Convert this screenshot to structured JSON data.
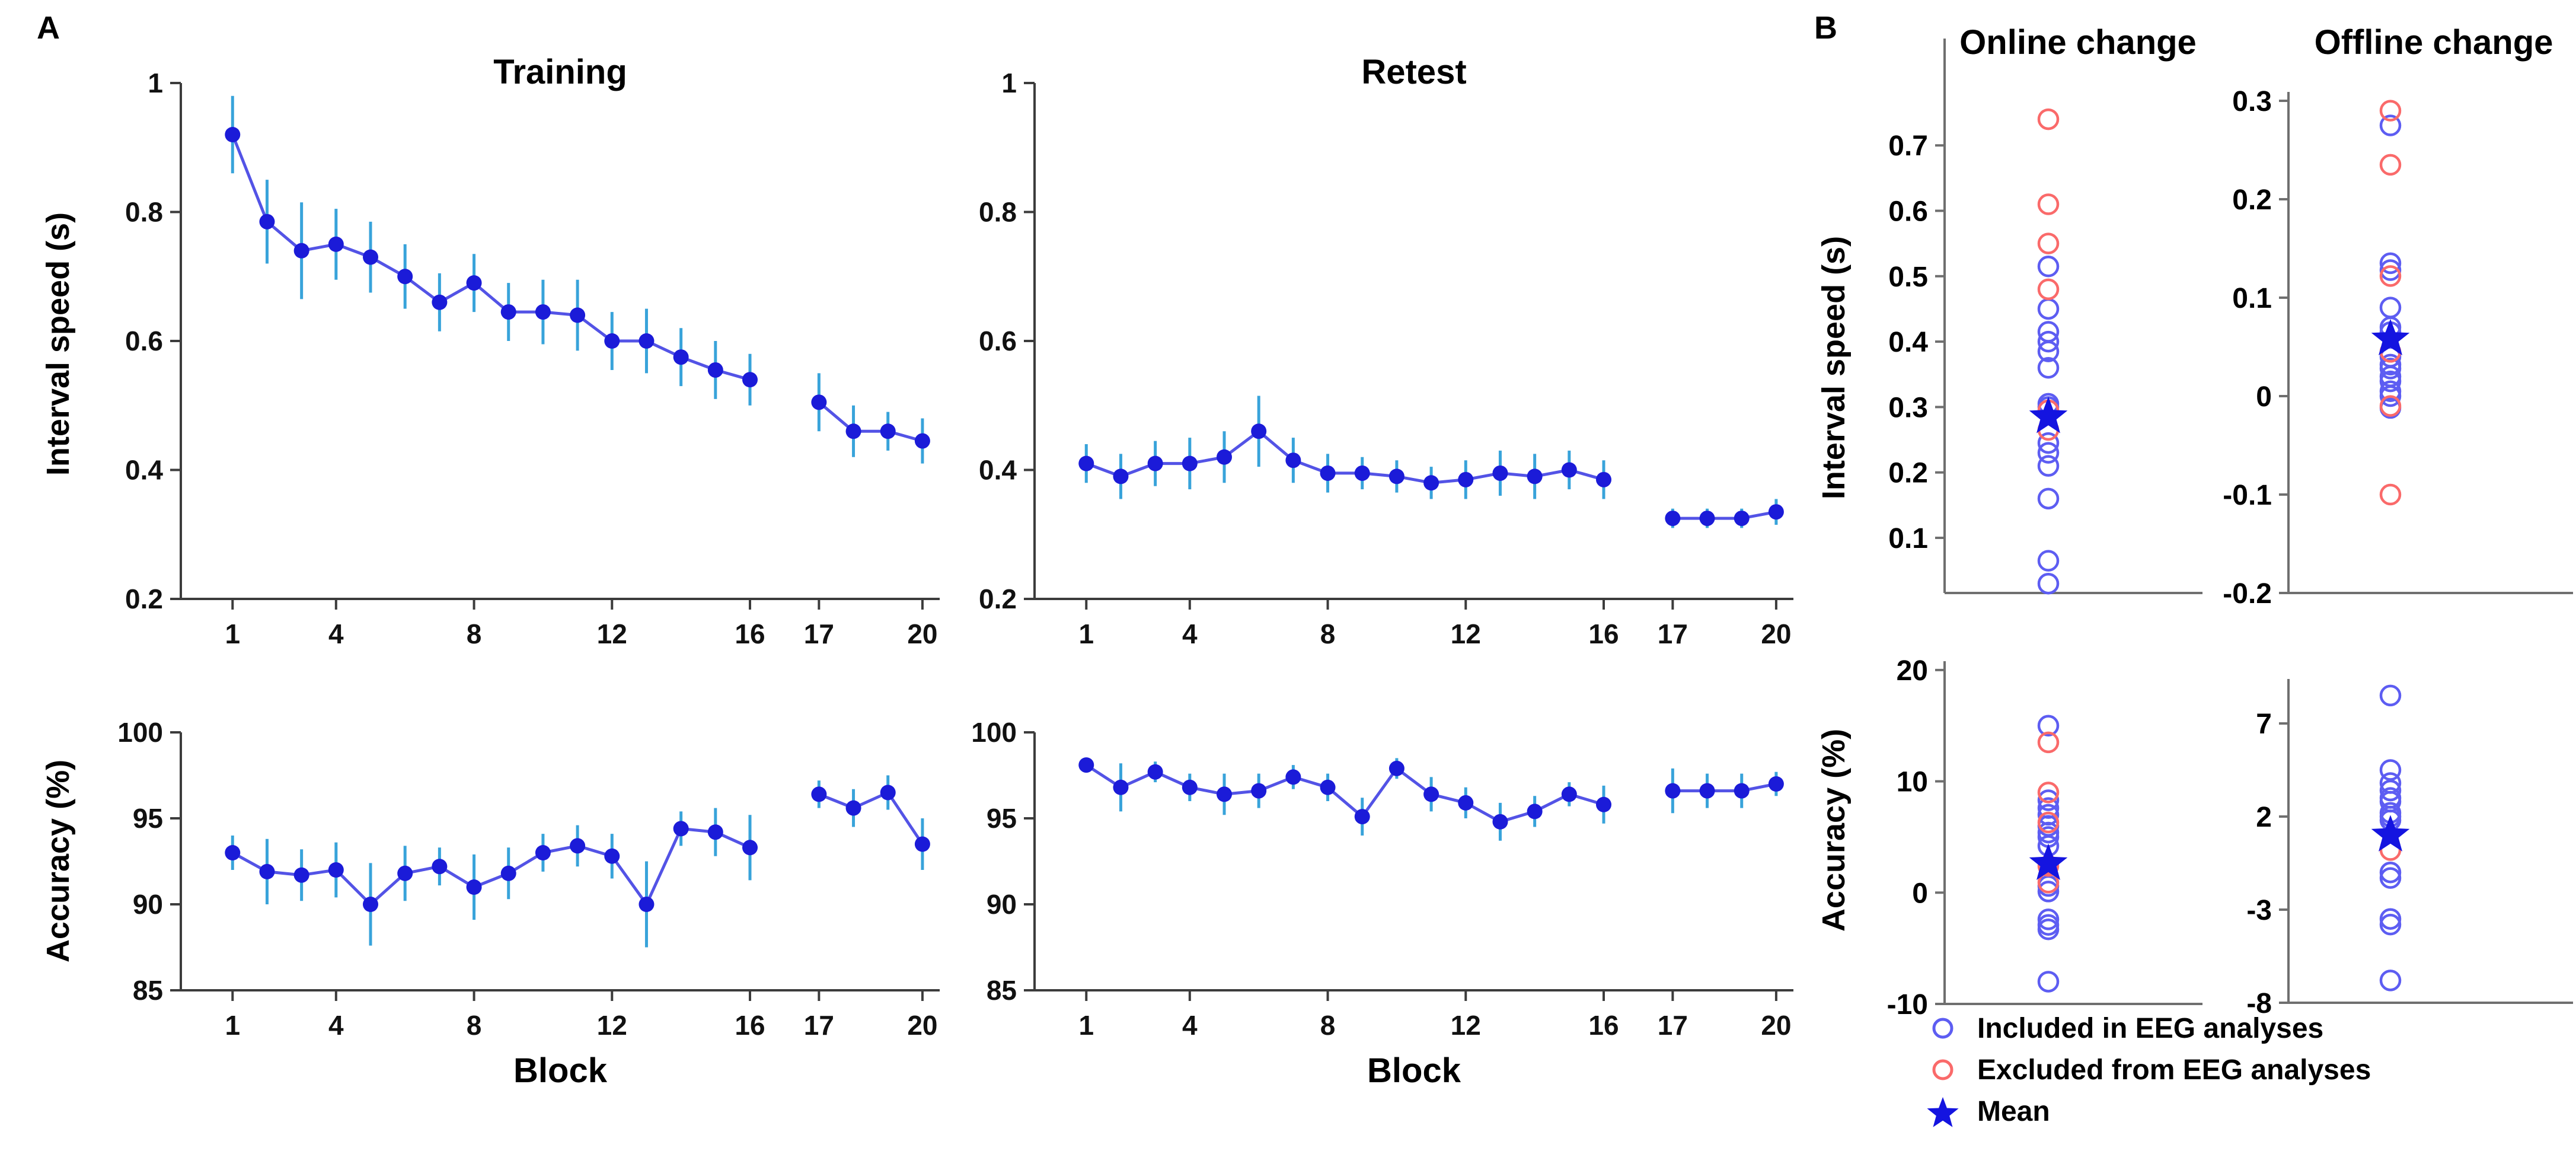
{
  "figure": {
    "panel_a_label": "A",
    "panel_b_label": "B",
    "labels": {
      "training_title": "Training",
      "retest_title": "Retest",
      "online_title": "Online change",
      "offline_title": "Offline change",
      "speed_ylabel": "Interval speed (s)",
      "accuracy_ylabel": "Accuracy (%)",
      "block_xlabel": "Block"
    },
    "colors": {
      "marker_blue": "#1b1bd8",
      "line_blue": "#5353e6",
      "error_bar_blue": "#38a3da",
      "included_blue": "#5d5df2",
      "excluded_red": "#fa6a6a",
      "mean_star_blue": "#1414e0",
      "axis_dark": "#3c3c3c",
      "axis_gray": "#6f6f6f",
      "text_black": "#111111"
    },
    "legend": {
      "items": [
        {
          "icon": "blue-open-circle",
          "label": "Included in EEG analyses"
        },
        {
          "icon": "red-open-circle",
          "label": "Excluded from EEG analyses"
        },
        {
          "icon": "blue-star",
          "label": "Mean"
        }
      ]
    }
  },
  "chart_data": [
    {
      "id": "training-speed",
      "type": "line",
      "title": "Training",
      "ylabel": "Interval speed (s)",
      "xlabel": "",
      "ylim": [
        0.2,
        1
      ],
      "yticks": [
        0.2,
        0.4,
        0.6,
        0.8,
        1
      ],
      "xticks": [
        1,
        4,
        8,
        12,
        16,
        17,
        20
      ],
      "gap_after_block": 16,
      "categories": [
        1,
        2,
        3,
        4,
        5,
        6,
        7,
        8,
        9,
        10,
        11,
        12,
        13,
        14,
        15,
        16,
        17,
        18,
        19,
        20
      ],
      "values": [
        0.92,
        0.785,
        0.74,
        0.75,
        0.73,
        0.7,
        0.66,
        0.69,
        0.645,
        0.645,
        0.64,
        0.6,
        0.6,
        0.575,
        0.555,
        0.54,
        0.505,
        0.46,
        0.46,
        0.445
      ],
      "errors": [
        0.06,
        0.065,
        0.075,
        0.055,
        0.055,
        0.05,
        0.045,
        0.045,
        0.045,
        0.05,
        0.055,
        0.045,
        0.05,
        0.045,
        0.045,
        0.04,
        0.045,
        0.04,
        0.03,
        0.035
      ]
    },
    {
      "id": "retest-speed",
      "type": "line",
      "title": "Retest",
      "ylabel": "",
      "xlabel": "",
      "ylim": [
        0.2,
        1
      ],
      "yticks": [
        0.2,
        0.4,
        0.6,
        0.8,
        1
      ],
      "xticks": [
        1,
        4,
        8,
        12,
        16,
        17,
        20
      ],
      "gap_after_block": 16,
      "categories": [
        1,
        2,
        3,
        4,
        5,
        6,
        7,
        8,
        9,
        10,
        11,
        12,
        13,
        14,
        15,
        16,
        17,
        18,
        19,
        20
      ],
      "values": [
        0.41,
        0.39,
        0.41,
        0.41,
        0.42,
        0.46,
        0.415,
        0.395,
        0.395,
        0.39,
        0.38,
        0.385,
        0.395,
        0.39,
        0.4,
        0.385,
        0.325,
        0.325,
        0.325,
        0.335
      ],
      "errors": [
        0.03,
        0.035,
        0.035,
        0.04,
        0.04,
        0.055,
        0.035,
        0.03,
        0.025,
        0.025,
        0.025,
        0.03,
        0.035,
        0.035,
        0.03,
        0.03,
        0.015,
        0.015,
        0.015,
        0.02
      ]
    },
    {
      "id": "training-accuracy",
      "type": "line",
      "title": "",
      "ylabel": "Accuracy (%)",
      "xlabel": "Block",
      "ylim": [
        85,
        100
      ],
      "yticks": [
        85,
        90,
        95,
        100
      ],
      "xticks": [
        1,
        4,
        8,
        12,
        16,
        17,
        20
      ],
      "gap_after_block": 16,
      "categories": [
        1,
        2,
        3,
        4,
        5,
        6,
        7,
        8,
        9,
        10,
        11,
        12,
        13,
        14,
        15,
        16,
        17,
        18,
        19,
        20
      ],
      "values": [
        93,
        91.9,
        91.7,
        92,
        90,
        91.8,
        92.2,
        91,
        91.8,
        93,
        93.4,
        92.8,
        90,
        94.4,
        94.2,
        93.3,
        96.4,
        95.6,
        96.5,
        93.5
      ],
      "errors": [
        1.0,
        1.9,
        1.5,
        1.6,
        2.4,
        1.6,
        1.1,
        1.9,
        1.5,
        1.1,
        1.2,
        1.3,
        2.5,
        1.0,
        1.4,
        1.9,
        0.8,
        1.1,
        1.0,
        1.5
      ]
    },
    {
      "id": "retest-accuracy",
      "type": "line",
      "title": "",
      "ylabel": "",
      "xlabel": "Block",
      "ylim": [
        85,
        100
      ],
      "yticks": [
        85,
        90,
        95,
        100
      ],
      "xticks": [
        1,
        4,
        8,
        12,
        16,
        17,
        20
      ],
      "gap_after_block": 16,
      "categories": [
        1,
        2,
        3,
        4,
        5,
        6,
        7,
        8,
        9,
        10,
        11,
        12,
        13,
        14,
        15,
        16,
        17,
        18,
        19,
        20
      ],
      "values": [
        98.1,
        96.8,
        97.7,
        96.8,
        96.4,
        96.6,
        97.4,
        96.8,
        95.1,
        97.9,
        96.4,
        95.9,
        94.8,
        95.4,
        96.4,
        95.8,
        96.6,
        96.6,
        96.6,
        97.0
      ],
      "errors": [
        0.4,
        1.4,
        0.6,
        0.8,
        1.2,
        1.0,
        0.7,
        0.8,
        1.1,
        0.6,
        1.0,
        0.9,
        1.1,
        0.9,
        0.7,
        1.1,
        1.3,
        1.0,
        1.0,
        0.7
      ]
    },
    {
      "id": "online-change-speed",
      "type": "scatter",
      "title": "Online change",
      "ylabel": "Interval speed (s)",
      "ylim": [
        0,
        0.8
      ],
      "yticks": [
        0.1,
        0.2,
        0.3,
        0.4,
        0.5,
        0.6,
        0.7
      ],
      "included": [
        0.515,
        0.45,
        0.415,
        0.4,
        0.385,
        0.36,
        0.305,
        0.3,
        0.245,
        0.23,
        0.21,
        0.16,
        0.065,
        0.03
      ],
      "excluded": [
        0.74,
        0.61,
        0.55,
        0.48,
        0.295,
        0.265
      ],
      "mean": 0.285
    },
    {
      "id": "offline-change-speed",
      "type": "scatter",
      "title": "Offline change",
      "ylabel": "Interval speed (s)",
      "ylim": [
        -0.2,
        0.3
      ],
      "yticks": [
        -0.2,
        -0.1,
        0,
        0.1,
        0.2,
        0.3
      ],
      "included": [
        0.275,
        0.135,
        0.128,
        0.09,
        0.07,
        0.065,
        0.04,
        0.032,
        0.028,
        0.02,
        0.015,
        0.005,
        0,
        -0.012
      ],
      "excluded": [
        0.29,
        0.235,
        0.122,
        0.045,
        -0.01,
        -0.1
      ],
      "mean": 0.058
    },
    {
      "id": "online-change-accuracy",
      "type": "scatter",
      "title": "Online change",
      "ylabel": "Accuracy (%)",
      "ylim": [
        -10,
        20
      ],
      "yticks": [
        -10,
        0,
        10,
        20
      ],
      "included": [
        15,
        8.3,
        7.6,
        7.0,
        6.0,
        5.4,
        5.0,
        4.2,
        0.6,
        0.1,
        -2.4,
        -2.9,
        -3.3,
        -8
      ],
      "excluded": [
        13.5,
        9.0,
        6.3,
        2.4,
        0.9
      ],
      "mean": 2.6
    },
    {
      "id": "offline-change-accuracy",
      "type": "scatter",
      "title": "Offline change",
      "ylabel": "Accuracy (%)",
      "ylim": [
        -8,
        9
      ],
      "yticks": [
        -8,
        -3,
        2,
        7
      ],
      "included": [
        8.5,
        4.5,
        3.8,
        3.4,
        3.0,
        2.8,
        2.2,
        2.0,
        1.8,
        -1.0,
        -1.3,
        -3.5,
        -3.8,
        -6.8
      ],
      "excluded": [
        0.2
      ],
      "mean": 1.0
    }
  ]
}
